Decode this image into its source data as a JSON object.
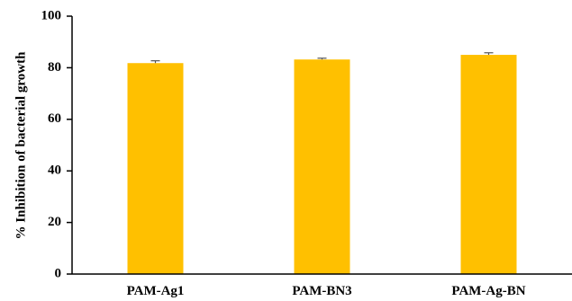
{
  "chart_data": {
    "type": "bar",
    "title": "",
    "xlabel": "",
    "ylabel": "% Inhibition of bacterial growth",
    "categories": [
      "PAM-Ag1",
      "PAM-BN3",
      "PAM-Ag-BN"
    ],
    "values": [
      81.8,
      83.2,
      85.0
    ],
    "errors": [
      0.9,
      0.5,
      0.8
    ],
    "ylim": [
      0,
      100
    ],
    "yticks": [
      0,
      20,
      40,
      60,
      80,
      100
    ],
    "grid": false,
    "legend": "none",
    "bar_color": "#FFC000",
    "axis_color": "#000000"
  }
}
